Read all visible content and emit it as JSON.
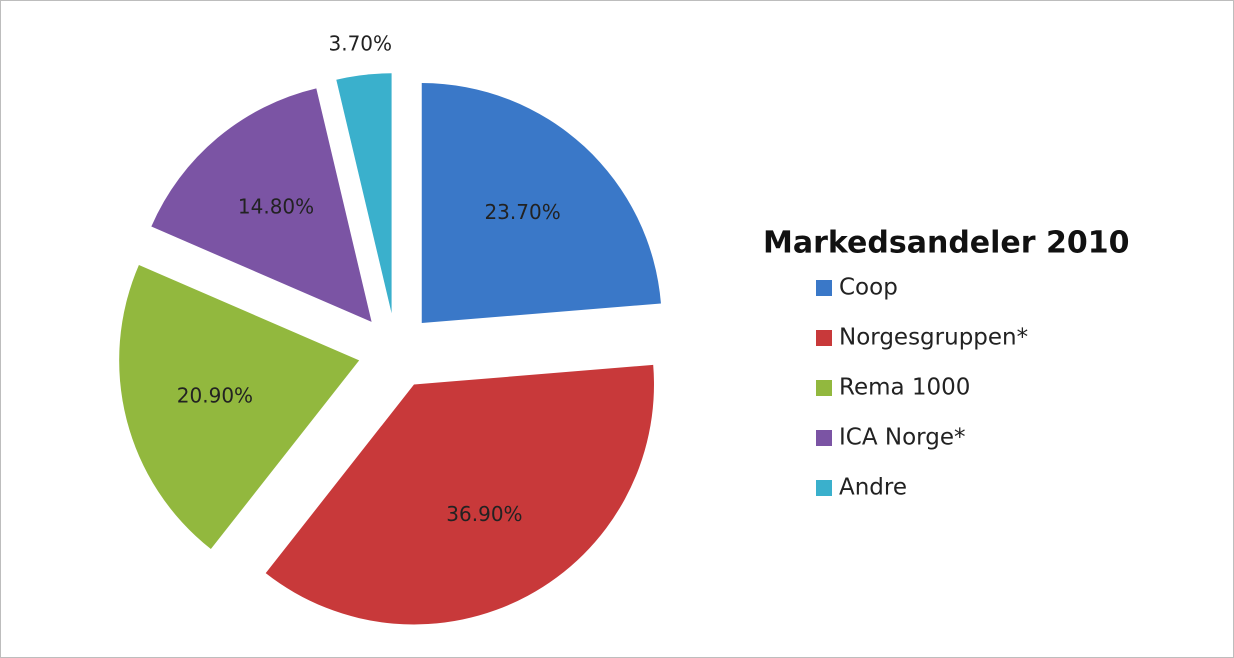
{
  "chart_data": {
    "type": "pie",
    "title": "Markedsandeler 2010",
    "categories": [
      "Coop",
      "Norgesgruppen*",
      "Rema 1000",
      "ICA Norge*",
      "Andre"
    ],
    "values": [
      23.7,
      36.9,
      20.9,
      14.8,
      3.7
    ],
    "value_labels": [
      "23.70%",
      "36.90%",
      "20.90%",
      "14.80%",
      "3.70%"
    ],
    "colors": [
      "#3a78c8",
      "#c8393a",
      "#92b83e",
      "#7b54a4",
      "#3ab0cc"
    ],
    "exploded": true
  }
}
